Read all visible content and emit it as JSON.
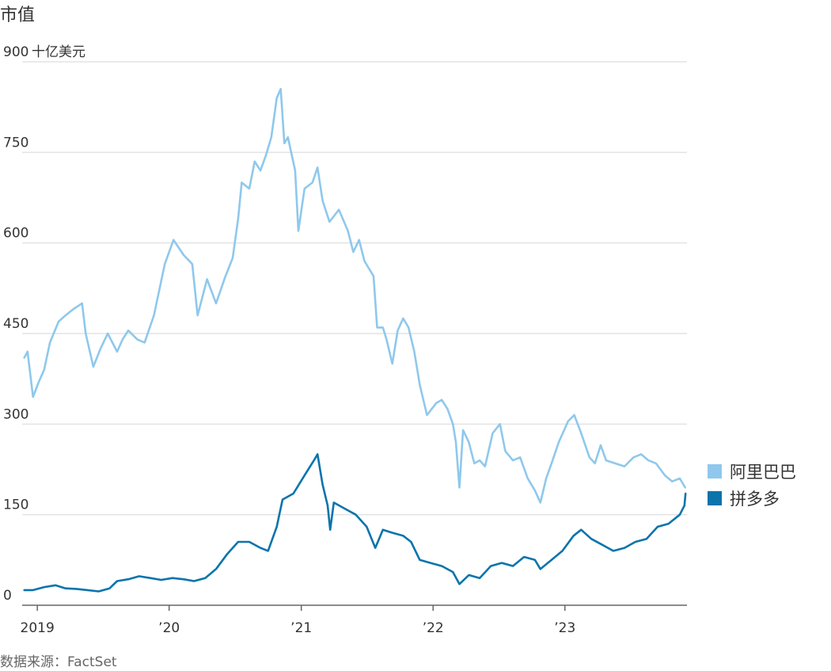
{
  "chart_data": {
    "type": "line",
    "title": "市值",
    "ylabel_unit": "十亿美元",
    "source": "数据来源：FactSet",
    "ylim": [
      0,
      900
    ],
    "y_ticks": [
      {
        "value": 0,
        "label": "0"
      },
      {
        "value": 150,
        "label": "150"
      },
      {
        "value": 300,
        "label": "300"
      },
      {
        "value": 450,
        "label": "450"
      },
      {
        "value": 600,
        "label": "600"
      },
      {
        "value": 750,
        "label": "750"
      },
      {
        "value": 900,
        "label": "900"
      }
    ],
    "xlim": [
      "2018-11-20",
      "2023-12-05"
    ],
    "x_ticks": [
      {
        "date": "2019-01-01",
        "label": "2019"
      },
      {
        "date": "2020-01-01",
        "label": "’20"
      },
      {
        "date": "2021-01-01",
        "label": "’21"
      },
      {
        "date": "2022-01-01",
        "label": "’22"
      },
      {
        "date": "2023-01-01",
        "label": "’23"
      }
    ],
    "legend_position": "right",
    "series": [
      {
        "name": "阿里巴巴",
        "color": "#8fc8ec",
        "points": [
          [
            "2018-11-26",
            410
          ],
          [
            "2018-12-05",
            420
          ],
          [
            "2018-12-20",
            345
          ],
          [
            "2019-01-05",
            370
          ],
          [
            "2019-01-20",
            390
          ],
          [
            "2019-02-05",
            435
          ],
          [
            "2019-03-01",
            470
          ],
          [
            "2019-03-20",
            480
          ],
          [
            "2019-04-10",
            490
          ],
          [
            "2019-05-05",
            500
          ],
          [
            "2019-05-15",
            450
          ],
          [
            "2019-06-05",
            395
          ],
          [
            "2019-06-25",
            425
          ],
          [
            "2019-07-15",
            450
          ],
          [
            "2019-08-10",
            420
          ],
          [
            "2019-08-25",
            440
          ],
          [
            "2019-09-10",
            455
          ],
          [
            "2019-10-05",
            440
          ],
          [
            "2019-10-25",
            435
          ],
          [
            "2019-11-20",
            480
          ],
          [
            "2019-12-20",
            565
          ],
          [
            "2020-01-13",
            605
          ],
          [
            "2020-02-10",
            580
          ],
          [
            "2020-03-05",
            565
          ],
          [
            "2020-03-20",
            480
          ],
          [
            "2020-04-15",
            540
          ],
          [
            "2020-05-10",
            500
          ],
          [
            "2020-06-05",
            545
          ],
          [
            "2020-06-25",
            575
          ],
          [
            "2020-07-10",
            640
          ],
          [
            "2020-07-20",
            700
          ],
          [
            "2020-08-10",
            690
          ],
          [
            "2020-08-25",
            735
          ],
          [
            "2020-09-10",
            720
          ],
          [
            "2020-09-25",
            745
          ],
          [
            "2020-10-10",
            775
          ],
          [
            "2020-10-25",
            840
          ],
          [
            "2020-11-05",
            855
          ],
          [
            "2020-11-15",
            765
          ],
          [
            "2020-11-25",
            775
          ],
          [
            "2020-12-15",
            720
          ],
          [
            "2020-12-24",
            620
          ],
          [
            "2021-01-10",
            690
          ],
          [
            "2021-02-01",
            700
          ],
          [
            "2021-02-15",
            725
          ],
          [
            "2021-03-01",
            670
          ],
          [
            "2021-03-20",
            635
          ],
          [
            "2021-04-15",
            655
          ],
          [
            "2021-05-10",
            620
          ],
          [
            "2021-05-25",
            585
          ],
          [
            "2021-06-10",
            605
          ],
          [
            "2021-06-25",
            570
          ],
          [
            "2021-07-20",
            545
          ],
          [
            "2021-07-30",
            460
          ],
          [
            "2021-08-15",
            460
          ],
          [
            "2021-08-25",
            440
          ],
          [
            "2021-09-10",
            400
          ],
          [
            "2021-09-25",
            455
          ],
          [
            "2021-10-10",
            475
          ],
          [
            "2021-10-25",
            460
          ],
          [
            "2021-11-10",
            420
          ],
          [
            "2021-11-25",
            365
          ],
          [
            "2021-12-15",
            315
          ],
          [
            "2022-01-10",
            335
          ],
          [
            "2022-01-25",
            340
          ],
          [
            "2022-02-10",
            325
          ],
          [
            "2022-02-25",
            300
          ],
          [
            "2022-03-05",
            270
          ],
          [
            "2022-03-15",
            195
          ],
          [
            "2022-03-25",
            290
          ],
          [
            "2022-04-10",
            270
          ],
          [
            "2022-04-25",
            235
          ],
          [
            "2022-05-10",
            240
          ],
          [
            "2022-05-25",
            230
          ],
          [
            "2022-06-15",
            285
          ],
          [
            "2022-07-05",
            300
          ],
          [
            "2022-07-20",
            255
          ],
          [
            "2022-08-10",
            240
          ],
          [
            "2022-08-30",
            245
          ],
          [
            "2022-09-20",
            210
          ],
          [
            "2022-10-10",
            190
          ],
          [
            "2022-10-25",
            170
          ],
          [
            "2022-11-10",
            210
          ],
          [
            "2022-11-25",
            235
          ],
          [
            "2022-12-15",
            270
          ],
          [
            "2023-01-10",
            305
          ],
          [
            "2023-01-27",
            315
          ],
          [
            "2023-02-15",
            285
          ],
          [
            "2023-03-10",
            245
          ],
          [
            "2023-03-25",
            235
          ],
          [
            "2023-04-10",
            265
          ],
          [
            "2023-04-25",
            240
          ],
          [
            "2023-05-20",
            235
          ],
          [
            "2023-06-15",
            230
          ],
          [
            "2023-07-10",
            245
          ],
          [
            "2023-07-31",
            250
          ],
          [
            "2023-08-20",
            240
          ],
          [
            "2023-09-10",
            235
          ],
          [
            "2023-10-05",
            215
          ],
          [
            "2023-10-25",
            205
          ],
          [
            "2023-11-15",
            210
          ],
          [
            "2023-11-30",
            195
          ]
        ]
      },
      {
        "name": "拼多多",
        "color": "#0a74ab",
        "points": [
          [
            "2018-11-26",
            25
          ],
          [
            "2018-12-20",
            25
          ],
          [
            "2019-01-20",
            30
          ],
          [
            "2019-02-20",
            33
          ],
          [
            "2019-03-20",
            28
          ],
          [
            "2019-04-20",
            27
          ],
          [
            "2019-05-20",
            25
          ],
          [
            "2019-06-20",
            23
          ],
          [
            "2019-07-20",
            28
          ],
          [
            "2019-08-10",
            40
          ],
          [
            "2019-09-10",
            43
          ],
          [
            "2019-10-10",
            48
          ],
          [
            "2019-11-10",
            45
          ],
          [
            "2019-12-10",
            42
          ],
          [
            "2020-01-10",
            45
          ],
          [
            "2020-02-10",
            43
          ],
          [
            "2020-03-10",
            40
          ],
          [
            "2020-04-10",
            45
          ],
          [
            "2020-05-10",
            60
          ],
          [
            "2020-06-10",
            85
          ],
          [
            "2020-07-10",
            105
          ],
          [
            "2020-08-10",
            105
          ],
          [
            "2020-09-10",
            95
          ],
          [
            "2020-10-01",
            90
          ],
          [
            "2020-10-25",
            130
          ],
          [
            "2020-11-10",
            175
          ],
          [
            "2020-12-10",
            185
          ],
          [
            "2021-01-10",
            215
          ],
          [
            "2021-02-05",
            240
          ],
          [
            "2021-02-15",
            250
          ],
          [
            "2021-03-01",
            200
          ],
          [
            "2021-03-15",
            165
          ],
          [
            "2021-03-22",
            125
          ],
          [
            "2021-04-01",
            170
          ],
          [
            "2021-05-01",
            160
          ],
          [
            "2021-06-01",
            150
          ],
          [
            "2021-07-01",
            130
          ],
          [
            "2021-07-25",
            95
          ],
          [
            "2021-08-15",
            125
          ],
          [
            "2021-09-10",
            120
          ],
          [
            "2021-10-10",
            115
          ],
          [
            "2021-11-01",
            105
          ],
          [
            "2021-11-25",
            75
          ],
          [
            "2021-12-25",
            70
          ],
          [
            "2022-01-25",
            65
          ],
          [
            "2022-02-25",
            55
          ],
          [
            "2022-03-15",
            35
          ],
          [
            "2022-04-10",
            50
          ],
          [
            "2022-05-10",
            45
          ],
          [
            "2022-06-10",
            65
          ],
          [
            "2022-07-10",
            70
          ],
          [
            "2022-08-10",
            65
          ],
          [
            "2022-09-10",
            80
          ],
          [
            "2022-10-10",
            75
          ],
          [
            "2022-10-25",
            60
          ],
          [
            "2022-11-25",
            75
          ],
          [
            "2022-12-25",
            90
          ],
          [
            "2023-01-25",
            115
          ],
          [
            "2023-02-15",
            125
          ],
          [
            "2023-03-15",
            110
          ],
          [
            "2023-04-15",
            100
          ],
          [
            "2023-05-15",
            90
          ],
          [
            "2023-06-15",
            95
          ],
          [
            "2023-07-15",
            105
          ],
          [
            "2023-08-15",
            110
          ],
          [
            "2023-09-15",
            130
          ],
          [
            "2023-10-15",
            135
          ],
          [
            "2023-11-15",
            150
          ],
          [
            "2023-11-28",
            165
          ],
          [
            "2023-12-01",
            185
          ]
        ]
      }
    ]
  }
}
